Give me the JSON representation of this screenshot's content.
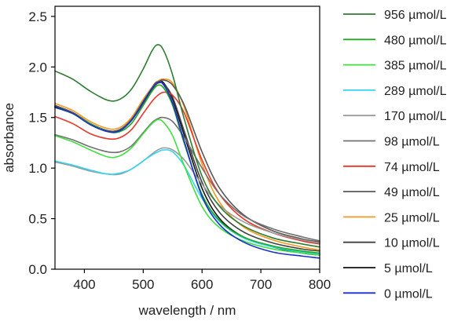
{
  "chart_data": {
    "type": "line",
    "title": "",
    "xlabel": "wavelength / nm",
    "ylabel": "absorbance",
    "xlim": [
      350,
      800
    ],
    "ylim": [
      0.0,
      2.6
    ],
    "x_ticks": [
      400,
      500,
      600,
      700,
      800
    ],
    "x_tick_labels": [
      "400",
      "500",
      "600",
      "700",
      "800"
    ],
    "y_ticks": [
      0.0,
      0.5,
      1.0,
      1.5,
      2.0,
      2.5
    ],
    "y_tick_labels": [
      "0.0",
      "0.5",
      "1.0",
      "1.5",
      "2.0",
      "2.5"
    ],
    "grid": false,
    "legend_position": "right",
    "x": [
      350,
      380,
      410,
      440,
      460,
      480,
      500,
      515,
      525,
      535,
      550,
      570,
      600,
      630,
      670,
      720,
      770,
      800
    ],
    "series": [
      {
        "name": "956 µmol/L",
        "color": "#2e7d32",
        "values": [
          1.96,
          1.88,
          1.76,
          1.67,
          1.68,
          1.78,
          1.98,
          2.16,
          2.22,
          2.16,
          1.92,
          1.48,
          0.92,
          0.62,
          0.43,
          0.31,
          0.25,
          0.22
        ]
      },
      {
        "name": "480 µmol/L",
        "color": "#1faa1f",
        "values": [
          1.6,
          1.54,
          1.44,
          1.36,
          1.36,
          1.44,
          1.62,
          1.76,
          1.82,
          1.79,
          1.62,
          1.24,
          0.74,
          0.48,
          0.32,
          0.23,
          0.18,
          0.16
        ]
      },
      {
        "name": "385 µmol/L",
        "color": "#3ee03e",
        "values": [
          1.32,
          1.26,
          1.18,
          1.11,
          1.12,
          1.2,
          1.34,
          1.44,
          1.48,
          1.45,
          1.32,
          1.02,
          0.62,
          0.41,
          0.28,
          0.2,
          0.16,
          0.14
        ]
      },
      {
        "name": "289 µmol/L",
        "color": "#33d6f0",
        "values": [
          1.07,
          1.03,
          0.98,
          0.94,
          0.95,
          0.99,
          1.07,
          1.13,
          1.16,
          1.18,
          1.16,
          1.02,
          0.7,
          0.47,
          0.31,
          0.22,
          0.17,
          0.15
        ]
      },
      {
        "name": "170 µmol/L",
        "color": "#9a9a9a",
        "values": [
          1.06,
          1.02,
          0.97,
          0.94,
          0.94,
          0.99,
          1.07,
          1.14,
          1.18,
          1.2,
          1.18,
          1.08,
          0.84,
          0.63,
          0.47,
          0.36,
          0.29,
          0.26
        ]
      },
      {
        "name": "98 µmol/L",
        "color": "#707070",
        "values": [
          1.33,
          1.28,
          1.21,
          1.16,
          1.16,
          1.22,
          1.35,
          1.45,
          1.49,
          1.5,
          1.46,
          1.3,
          1.0,
          0.74,
          0.53,
          0.4,
          0.32,
          0.28
        ]
      },
      {
        "name": "74 µmol/L",
        "color": "#e8362a",
        "values": [
          1.51,
          1.44,
          1.34,
          1.29,
          1.3,
          1.38,
          1.54,
          1.66,
          1.72,
          1.75,
          1.72,
          1.54,
          1.08,
          0.74,
          0.5,
          0.36,
          0.28,
          0.25
        ]
      },
      {
        "name": "49 µmol/L",
        "color": "#585858",
        "values": [
          1.62,
          1.55,
          1.44,
          1.37,
          1.38,
          1.48,
          1.66,
          1.79,
          1.85,
          1.87,
          1.82,
          1.62,
          1.16,
          0.8,
          0.54,
          0.38,
          0.3,
          0.27
        ]
      },
      {
        "name": "25 µmol/L",
        "color": "#f5981f",
        "values": [
          1.64,
          1.57,
          1.46,
          1.39,
          1.4,
          1.5,
          1.68,
          1.8,
          1.86,
          1.88,
          1.84,
          1.6,
          1.04,
          0.66,
          0.42,
          0.29,
          0.22,
          0.19
        ]
      },
      {
        "name": "10 µmol/L",
        "color": "#404040",
        "values": [
          1.6,
          1.54,
          1.43,
          1.36,
          1.37,
          1.47,
          1.64,
          1.78,
          1.84,
          1.83,
          1.7,
          1.36,
          0.86,
          0.56,
          0.37,
          0.26,
          0.2,
          0.18
        ]
      },
      {
        "name": "5 µmol/L",
        "color": "#111111",
        "values": [
          1.61,
          1.55,
          1.44,
          1.37,
          1.38,
          1.48,
          1.66,
          1.8,
          1.86,
          1.84,
          1.68,
          1.32,
          0.8,
          0.5,
          0.32,
          0.22,
          0.16,
          0.14
        ]
      },
      {
        "name": "0 µmol/L",
        "color": "#1a2fcc",
        "values": [
          1.6,
          1.54,
          1.43,
          1.36,
          1.37,
          1.47,
          1.65,
          1.79,
          1.85,
          1.82,
          1.64,
          1.26,
          0.72,
          0.44,
          0.27,
          0.17,
          0.13,
          0.11
        ]
      }
    ]
  }
}
